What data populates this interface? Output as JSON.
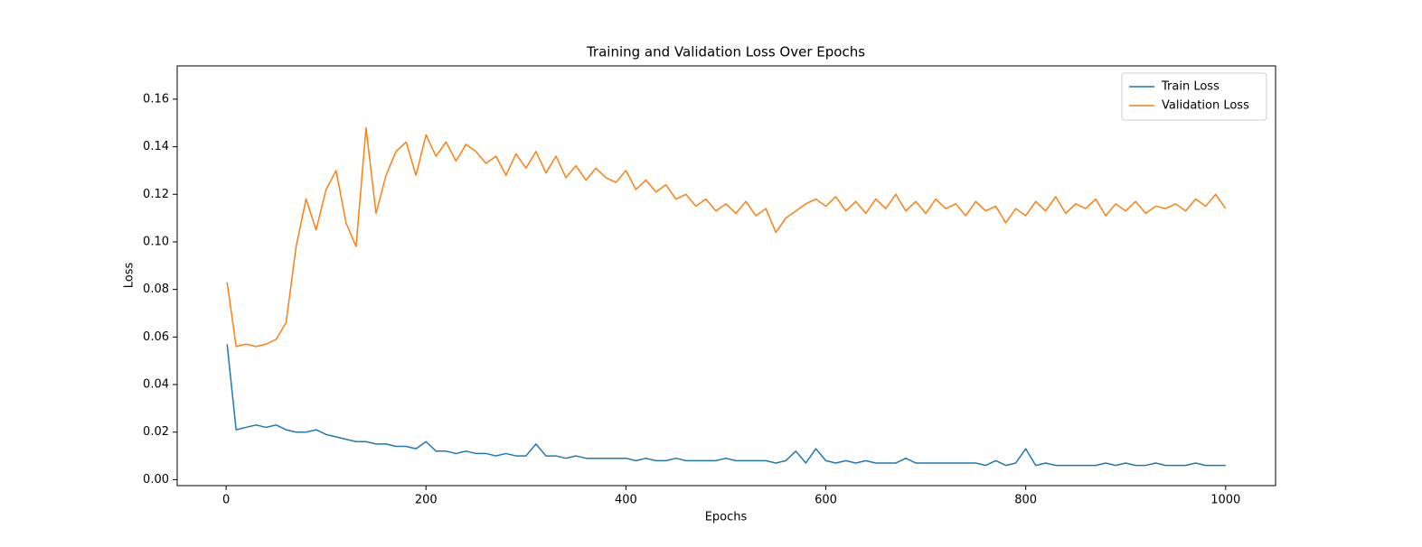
{
  "chart_data": {
    "type": "line",
    "title": "Training and Validation Loss Over Epochs",
    "xlabel": "Epochs",
    "ylabel": "Loss",
    "x": [
      1,
      10,
      20,
      30,
      40,
      50,
      60,
      70,
      80,
      90,
      100,
      110,
      120,
      130,
      140,
      150,
      160,
      170,
      180,
      190,
      200,
      210,
      220,
      230,
      240,
      250,
      260,
      270,
      280,
      290,
      300,
      310,
      320,
      330,
      340,
      350,
      360,
      370,
      380,
      390,
      400,
      410,
      420,
      430,
      440,
      450,
      460,
      470,
      480,
      490,
      500,
      510,
      520,
      530,
      540,
      550,
      560,
      570,
      580,
      590,
      600,
      610,
      620,
      630,
      640,
      650,
      660,
      670,
      680,
      690,
      700,
      710,
      720,
      730,
      740,
      750,
      760,
      770,
      780,
      790,
      800,
      810,
      820,
      830,
      840,
      850,
      860,
      870,
      880,
      890,
      900,
      910,
      920,
      930,
      940,
      950,
      960,
      970,
      980,
      990,
      1000
    ],
    "series": [
      {
        "name": "Train Loss",
        "color": "#1f77b4",
        "values": [
          0.057,
          0.021,
          0.022,
          0.023,
          0.022,
          0.023,
          0.021,
          0.02,
          0.02,
          0.021,
          0.019,
          0.018,
          0.017,
          0.016,
          0.016,
          0.015,
          0.015,
          0.014,
          0.014,
          0.013,
          0.016,
          0.012,
          0.012,
          0.011,
          0.012,
          0.011,
          0.011,
          0.01,
          0.011,
          0.01,
          0.01,
          0.015,
          0.01,
          0.01,
          0.009,
          0.01,
          0.009,
          0.009,
          0.009,
          0.009,
          0.009,
          0.008,
          0.009,
          0.008,
          0.008,
          0.009,
          0.008,
          0.008,
          0.008,
          0.008,
          0.009,
          0.008,
          0.008,
          0.008,
          0.008,
          0.007,
          0.008,
          0.012,
          0.007,
          0.013,
          0.008,
          0.007,
          0.008,
          0.007,
          0.008,
          0.007,
          0.007,
          0.007,
          0.009,
          0.007,
          0.007,
          0.007,
          0.007,
          0.007,
          0.007,
          0.007,
          0.006,
          0.008,
          0.006,
          0.007,
          0.013,
          0.006,
          0.007,
          0.006,
          0.006,
          0.006,
          0.006,
          0.006,
          0.007,
          0.006,
          0.007,
          0.006,
          0.006,
          0.007,
          0.006,
          0.006,
          0.006,
          0.007,
          0.006,
          0.006,
          0.006
        ]
      },
      {
        "name": "Validation Loss",
        "color": "#ff7f0e",
        "values": [
          0.083,
          0.056,
          0.057,
          0.056,
          0.057,
          0.059,
          0.066,
          0.098,
          0.118,
          0.105,
          0.122,
          0.13,
          0.108,
          0.098,
          0.148,
          0.112,
          0.128,
          0.138,
          0.142,
          0.128,
          0.145,
          0.136,
          0.142,
          0.134,
          0.141,
          0.138,
          0.133,
          0.136,
          0.128,
          0.137,
          0.131,
          0.138,
          0.129,
          0.136,
          0.127,
          0.132,
          0.126,
          0.131,
          0.127,
          0.125,
          0.13,
          0.122,
          0.126,
          0.121,
          0.124,
          0.118,
          0.12,
          0.115,
          0.118,
          0.113,
          0.116,
          0.112,
          0.117,
          0.111,
          0.114,
          0.104,
          0.11,
          0.113,
          0.116,
          0.118,
          0.115,
          0.119,
          0.113,
          0.117,
          0.112,
          0.118,
          0.114,
          0.12,
          0.113,
          0.117,
          0.112,
          0.118,
          0.114,
          0.116,
          0.111,
          0.117,
          0.113,
          0.115,
          0.108,
          0.114,
          0.111,
          0.117,
          0.113,
          0.119,
          0.112,
          0.116,
          0.114,
          0.118,
          0.111,
          0.116,
          0.113,
          0.117,
          0.112,
          0.115,
          0.114,
          0.116,
          0.113,
          0.118,
          0.115,
          0.12,
          0.114
        ]
      }
    ],
    "xlim": [
      -48.95,
      1049.95
    ],
    "ylim": [
      -0.0025,
      0.174
    ],
    "xticks": [
      0,
      200,
      400,
      600,
      800,
      1000
    ],
    "yticks": [
      {
        "value": 0,
        "label": "0.00"
      },
      {
        "value": 0.02,
        "label": "0.02"
      },
      {
        "value": 0.04,
        "label": "0.04"
      },
      {
        "value": 0.06,
        "label": "0.06"
      },
      {
        "value": 0.08,
        "label": "0.08"
      },
      {
        "value": 0.1,
        "label": "0.10"
      },
      {
        "value": 0.12,
        "label": "0.12"
      },
      {
        "value": 0.14,
        "label": "0.14"
      },
      {
        "value": 0.16,
        "label": "0.16"
      }
    ],
    "legend": "upper right",
    "grid": false
  }
}
